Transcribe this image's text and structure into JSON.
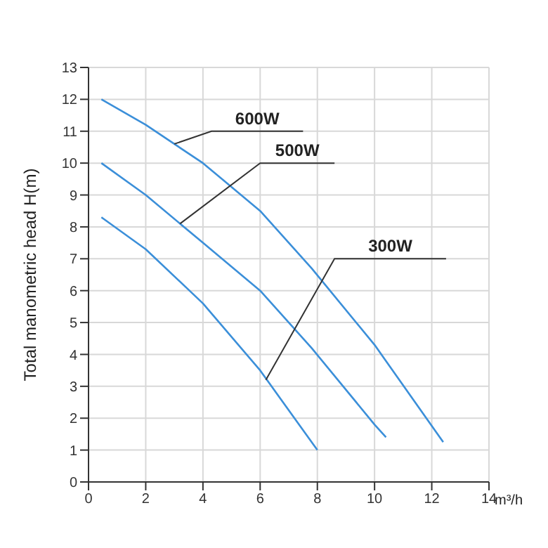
{
  "chart_data": {
    "type": "line",
    "xlabel": "m³/h",
    "ylabel": "Total manometric head H(m)",
    "xlim": [
      0,
      14
    ],
    "xticks": [
      0,
      2,
      4,
      6,
      8,
      10,
      12,
      14
    ],
    "ylim": [
      0,
      13
    ],
    "yticks": [
      0,
      1,
      2,
      3,
      4,
      5,
      6,
      7,
      8,
      9,
      10,
      11,
      12,
      13
    ],
    "grid": true,
    "marker": "none",
    "line_style": "solid",
    "series": [
      {
        "color": "#3b8fd9",
        "x": [
          0.45,
          2,
          4,
          6,
          7.8,
          10,
          12.4
        ],
        "values": [
          12,
          11.2,
          10,
          8.5,
          6.7,
          4.3,
          1.25
        ]
      },
      {
        "color": "#3b8fd9",
        "x": [
          0.45,
          2,
          4,
          6,
          7.8,
          10,
          10.4
        ],
        "values": [
          10,
          9,
          7.5,
          6,
          4.2,
          1.8,
          1.4
        ]
      },
      {
        "color": "#3b8fd9",
        "x": [
          0.45,
          2,
          4,
          6,
          7.8,
          8
        ],
        "values": [
          8.3,
          7.3,
          5.6,
          3.5,
          1.25,
          1
        ]
      }
    ],
    "annotations": [
      {
        "text": "600W",
        "x": 3,
        "y": 10.6
      },
      {
        "text": "500W",
        "x": 3.2,
        "y": 8.1
      },
      {
        "text": "300W",
        "x": 6.2,
        "y": 3.2
      }
    ]
  }
}
